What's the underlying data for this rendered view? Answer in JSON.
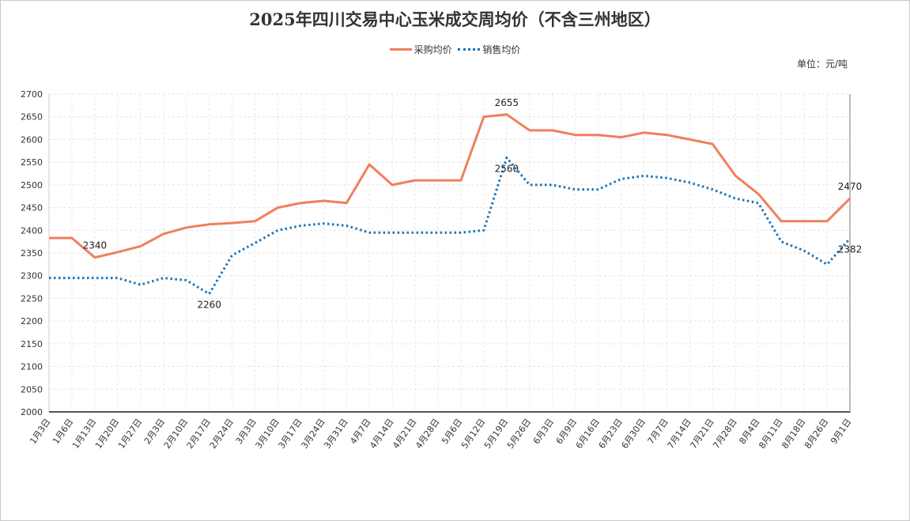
{
  "chart_data": {
    "type": "line",
    "title": "2025年四川交易中心玉米成交周均价（不含三州地区）",
    "unit_label": "单位：元/吨",
    "categories": [
      "1月3日",
      "1月6日",
      "1月13日",
      "1月20日",
      "1月27日",
      "2月3日",
      "2月10日",
      "2月17日",
      "2月24日",
      "3月3日",
      "3月10日",
      "3月17日",
      "3月24日",
      "3月31日",
      "4月7日",
      "4月14日",
      "4月21日",
      "4月28日",
      "5月6日",
      "5月12日",
      "5月19日",
      "5月26日",
      "6月3日",
      "6月9日",
      "6月16日",
      "6月23日",
      "6月30日",
      "7月7日",
      "7月14日",
      "7月21日",
      "7月28日",
      "8月4日",
      "8月11日",
      "8月18日",
      "8月26日",
      "9月1日"
    ],
    "series": [
      {
        "name": "采购均价",
        "color": "#f07f5d",
        "style": "solid",
        "values": [
          2383,
          2383,
          2340,
          2352,
          2365,
          2392,
          2406,
          2413,
          2416,
          2420,
          2450,
          2460,
          2465,
          2460,
          2545,
          2500,
          2510,
          2510,
          2510,
          2650,
          2655,
          2620,
          2620,
          2610,
          2610,
          2605,
          2615,
          2610,
          2600,
          2590,
          2520,
          2480,
          2420,
          2420,
          2420,
          2470
        ]
      },
      {
        "name": "销售均价",
        "color": "#1a74b8",
        "style": "dotted",
        "values": [
          2295,
          2295,
          2295,
          2295,
          2280,
          2295,
          2290,
          2260,
          2345,
          2372,
          2400,
          2410,
          2415,
          2410,
          2395,
          2395,
          2395,
          2395,
          2395,
          2400,
          2560,
          2500,
          2500,
          2490,
          2490,
          2513,
          2520,
          2515,
          2505,
          2490,
          2470,
          2460,
          2375,
          2355,
          2325,
          2382
        ]
      }
    ],
    "data_labels": [
      {
        "series": 0,
        "index": 2,
        "text": "2340",
        "pos": "above"
      },
      {
        "series": 1,
        "index": 7,
        "text": "2260",
        "pos": "below"
      },
      {
        "series": 0,
        "index": 20,
        "text": "2655",
        "pos": "above"
      },
      {
        "series": 1,
        "index": 20,
        "text": "2560",
        "pos": "below"
      },
      {
        "series": 0,
        "index": 35,
        "text": "2470",
        "pos": "above"
      },
      {
        "series": 1,
        "index": 35,
        "text": "2382",
        "pos": "below"
      }
    ],
    "ylim": [
      2000,
      2700
    ],
    "ytick_step": 50,
    "grid": true,
    "legend_position": "top-center"
  }
}
